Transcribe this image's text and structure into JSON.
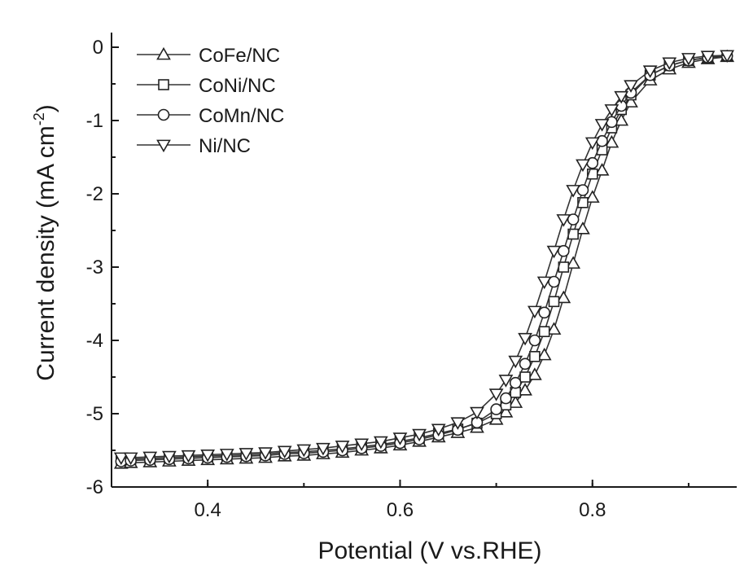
{
  "chart_data": {
    "type": "line",
    "title": "",
    "xlabel": "Potential (V vs.RHE)",
    "ylabel_main": "Current density (mA cm",
    "ylabel_sup": "-2",
    "ylabel_close": ")",
    "xlim": [
      0.3,
      0.95
    ],
    "ylim": [
      -6,
      0.2
    ],
    "xticks": [
      0.4,
      0.6,
      0.8
    ],
    "xtick_labels": [
      "0.4",
      "0.6",
      "0.8"
    ],
    "yticks": [
      0,
      -1,
      -2,
      -3,
      -4,
      -5,
      -6
    ],
    "ytick_labels": [
      "0",
      "-1",
      "-2",
      "-3",
      "-4",
      "-5",
      "-6"
    ],
    "grid": false,
    "legend_position": "top-left",
    "x": [
      0.31,
      0.32,
      0.34,
      0.36,
      0.38,
      0.4,
      0.42,
      0.44,
      0.46,
      0.48,
      0.5,
      0.52,
      0.54,
      0.56,
      0.58,
      0.6,
      0.62,
      0.64,
      0.66,
      0.68,
      0.7,
      0.71,
      0.72,
      0.73,
      0.74,
      0.75,
      0.76,
      0.77,
      0.78,
      0.79,
      0.8,
      0.81,
      0.82,
      0.83,
      0.84,
      0.86,
      0.88,
      0.9,
      0.92,
      0.94
    ],
    "series": [
      {
        "name": "CoFe/NC",
        "marker": "triangle-up",
        "values": [
          -5.68,
          -5.67,
          -5.66,
          -5.65,
          -5.64,
          -5.63,
          -5.62,
          -5.61,
          -5.6,
          -5.58,
          -5.57,
          -5.55,
          -5.53,
          -5.5,
          -5.47,
          -5.43,
          -5.38,
          -5.32,
          -5.26,
          -5.19,
          -5.08,
          -4.98,
          -4.85,
          -4.68,
          -4.47,
          -4.2,
          -3.85,
          -3.42,
          -2.95,
          -2.48,
          -2.05,
          -1.68,
          -1.3,
          -1.0,
          -0.75,
          -0.45,
          -0.3,
          -0.21,
          -0.16,
          -0.13
        ]
      },
      {
        "name": "CoNi/NC",
        "marker": "square",
        "values": [
          -5.62,
          -5.62,
          -5.61,
          -5.6,
          -5.59,
          -5.58,
          -5.57,
          -5.56,
          -5.55,
          -5.53,
          -5.52,
          -5.5,
          -5.48,
          -5.45,
          -5.42,
          -5.38,
          -5.33,
          -5.27,
          -5.21,
          -5.13,
          -5.0,
          -4.88,
          -4.71,
          -4.5,
          -4.22,
          -3.88,
          -3.47,
          -3.0,
          -2.55,
          -2.12,
          -1.73,
          -1.4,
          -1.1,
          -0.85,
          -0.65,
          -0.38,
          -0.25,
          -0.18,
          -0.14,
          -0.12
        ]
      },
      {
        "name": "CoMn/NC",
        "marker": "circle",
        "values": [
          -5.65,
          -5.64,
          -5.63,
          -5.62,
          -5.61,
          -5.6,
          -5.59,
          -5.58,
          -5.57,
          -5.55,
          -5.54,
          -5.52,
          -5.5,
          -5.47,
          -5.44,
          -5.4,
          -5.35,
          -5.29,
          -5.22,
          -5.12,
          -4.94,
          -4.79,
          -4.58,
          -4.32,
          -4.0,
          -3.62,
          -3.2,
          -2.78,
          -2.35,
          -1.95,
          -1.58,
          -1.28,
          -1.02,
          -0.8,
          -0.62,
          -0.38,
          -0.25,
          -0.18,
          -0.14,
          -0.12
        ]
      },
      {
        "name": "Ni/NC",
        "marker": "triangle-down",
        "values": [
          -5.6,
          -5.6,
          -5.59,
          -5.58,
          -5.57,
          -5.56,
          -5.55,
          -5.54,
          -5.53,
          -5.51,
          -5.49,
          -5.47,
          -5.44,
          -5.41,
          -5.38,
          -5.33,
          -5.28,
          -5.21,
          -5.12,
          -4.98,
          -4.73,
          -4.54,
          -4.28,
          -3.97,
          -3.6,
          -3.2,
          -2.78,
          -2.35,
          -1.95,
          -1.6,
          -1.3,
          -1.05,
          -0.85,
          -0.67,
          -0.52,
          -0.32,
          -0.21,
          -0.15,
          -0.12,
          -0.11
        ]
      }
    ]
  }
}
